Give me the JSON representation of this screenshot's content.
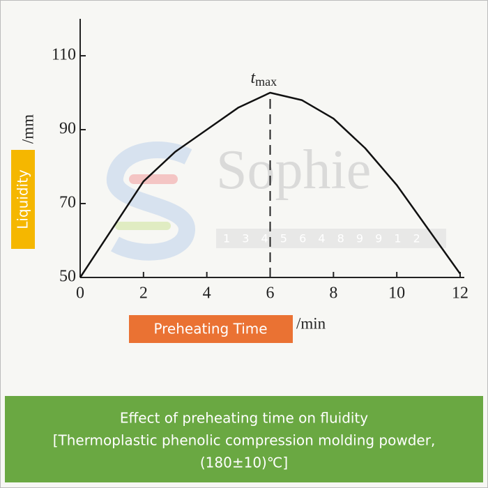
{
  "chart_data": {
    "type": "line",
    "x": [
      0,
      1,
      2,
      3,
      4,
      5,
      6,
      7,
      8,
      9,
      10,
      11,
      12
    ],
    "values": [
      50,
      63,
      76,
      84,
      90,
      96,
      100,
      98,
      93,
      85,
      75,
      63,
      51
    ],
    "color": "#111111",
    "xlim": [
      0,
      12
    ],
    "xticks": [
      0,
      2,
      4,
      6,
      8,
      10,
      12
    ],
    "ylim": [
      50,
      120
    ],
    "yticks": [
      50,
      70,
      90,
      110
    ],
    "y_label": "Liquidity",
    "y_unit": "/mm",
    "x_label": "Preheating Time",
    "x_unit": "/min",
    "annotation": {
      "text": "t",
      "subscript": "max",
      "x": 6
    },
    "watermark": "Sophie",
    "watermark_digits": "1 3 4 5 6 4 8 9 9 1 2",
    "caption": [
      "Effect of preheating time on fluidity",
      "[Thermoplastic phenolic compression molding powder,",
      "(180±10)℃]"
    ]
  }
}
